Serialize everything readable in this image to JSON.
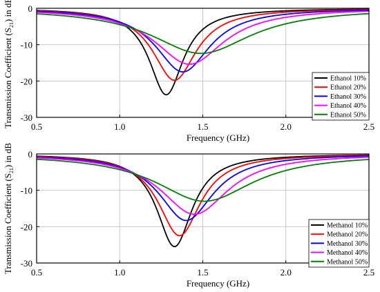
{
  "colors": {
    "background": "#ffffff",
    "grid": "#c8c8c8",
    "axis": "#000000"
  },
  "chart_data": [
    {
      "type": "line",
      "xlabel": "Frequency (GHz)",
      "ylabel_main": "Transmission Coefficient (S",
      "ylabel_sub": "21",
      "ylabel_end": ") in dB",
      "xlim": [
        0.5,
        2.5
      ],
      "ylim": [
        -30,
        0
      ],
      "xticks": [
        0.5,
        1.0,
        1.5,
        2.0,
        2.5
      ],
      "xtick_labels": [
        "0.5",
        "1.0",
        "1.5",
        "2.0",
        "2.5"
      ],
      "yticks": [
        0,
        -10,
        -20,
        -30
      ],
      "ytick_labels": [
        "0",
        "-10",
        "-20",
        "-30"
      ],
      "grid": true,
      "legend_position": "bottom-right",
      "series": [
        {
          "name": "Ethanol 10%",
          "color": "#000000",
          "f0": 1.28,
          "min": -23.8,
          "bw": 0.125
        },
        {
          "name": "Ethanol 20%",
          "color": "#ff0000",
          "f0": 1.33,
          "min": -19.8,
          "bw": 0.16
        },
        {
          "name": "Ethanol 30%",
          "color": "#0000ff",
          "f0": 1.38,
          "min": -17.5,
          "bw": 0.2
        },
        {
          "name": "Ethanol 40%",
          "color": "#ff00ff",
          "f0": 1.42,
          "min": -15.4,
          "bw": 0.255
        },
        {
          "name": "Ethanol 50%",
          "color": "#008000",
          "f0": 1.49,
          "min": -12.4,
          "bw": 0.37
        }
      ]
    },
    {
      "type": "line",
      "xlabel": "Frequency (GHz)",
      "ylabel_main": "Transmission Coefficient (S",
      "ylabel_sub": "21",
      "ylabel_end": ") in dB",
      "xlim": [
        0.5,
        2.5
      ],
      "ylim": [
        -30,
        0
      ],
      "xticks": [
        0.5,
        1.0,
        1.5,
        2.0,
        2.5
      ],
      "xtick_labels": [
        "0.5",
        "1.0",
        "1.5",
        "2.0",
        "2.5"
      ],
      "yticks": [
        0,
        -10,
        -20,
        -30
      ],
      "ytick_labels": [
        "0",
        "-10",
        "-20",
        "-30"
      ],
      "grid": true,
      "legend_position": "bottom-right",
      "series": [
        {
          "name": "Methanol 10%",
          "color": "#000000",
          "f0": 1.33,
          "min": -25.5,
          "bw": 0.13
        },
        {
          "name": "Methanol 20%",
          "color": "#ff0000",
          "f0": 1.36,
          "min": -22.5,
          "bw": 0.155
        },
        {
          "name": "Methanol 30%",
          "color": "#0000ff",
          "f0": 1.4,
          "min": -18.3,
          "bw": 0.2
        },
        {
          "name": "Methanol 40%",
          "color": "#ff00ff",
          "f0": 1.45,
          "min": -16.6,
          "bw": 0.25
        },
        {
          "name": "Methanol 50%",
          "color": "#008000",
          "f0": 1.51,
          "min": -13.0,
          "bw": 0.36
        }
      ]
    }
  ]
}
